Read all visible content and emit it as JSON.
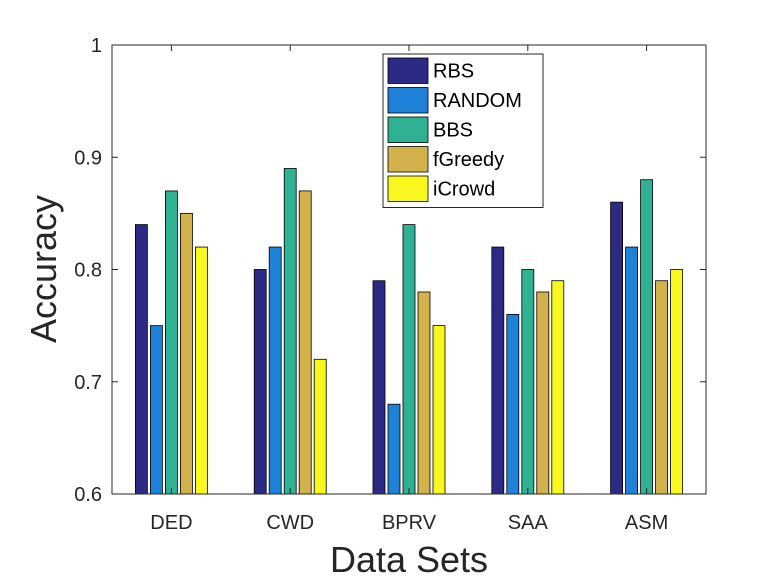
{
  "chart_data": {
    "type": "bar",
    "title": "",
    "xlabel": "Data Sets",
    "ylabel": "Accuracy",
    "ylim": [
      0.6,
      1.0
    ],
    "yticks": [
      0.6,
      0.7,
      0.8,
      0.9,
      1.0
    ],
    "ytick_labels": [
      "0.6",
      "0.7",
      "0.8",
      "0.9",
      "1"
    ],
    "categories": [
      "DED",
      "CWD",
      "BPRV",
      "SAA",
      "ASM"
    ],
    "legend_position": "top-center",
    "series": [
      {
        "name": "RBS",
        "color": "#2d2a86",
        "values": [
          0.84,
          0.8,
          0.79,
          0.82,
          0.86
        ]
      },
      {
        "name": "RANDOM",
        "color": "#1f82d8",
        "values": [
          0.75,
          0.82,
          0.68,
          0.76,
          0.82
        ]
      },
      {
        "name": "BBS",
        "color": "#2fb293",
        "values": [
          0.87,
          0.89,
          0.84,
          0.8,
          0.88
        ]
      },
      {
        "name": "fGreedy",
        "color": "#d3b24b",
        "values": [
          0.85,
          0.87,
          0.78,
          0.78,
          0.79
        ]
      },
      {
        "name": "iCrowd",
        "color": "#f8f81e",
        "values": [
          0.82,
          0.72,
          0.75,
          0.79,
          0.8
        ]
      }
    ]
  }
}
